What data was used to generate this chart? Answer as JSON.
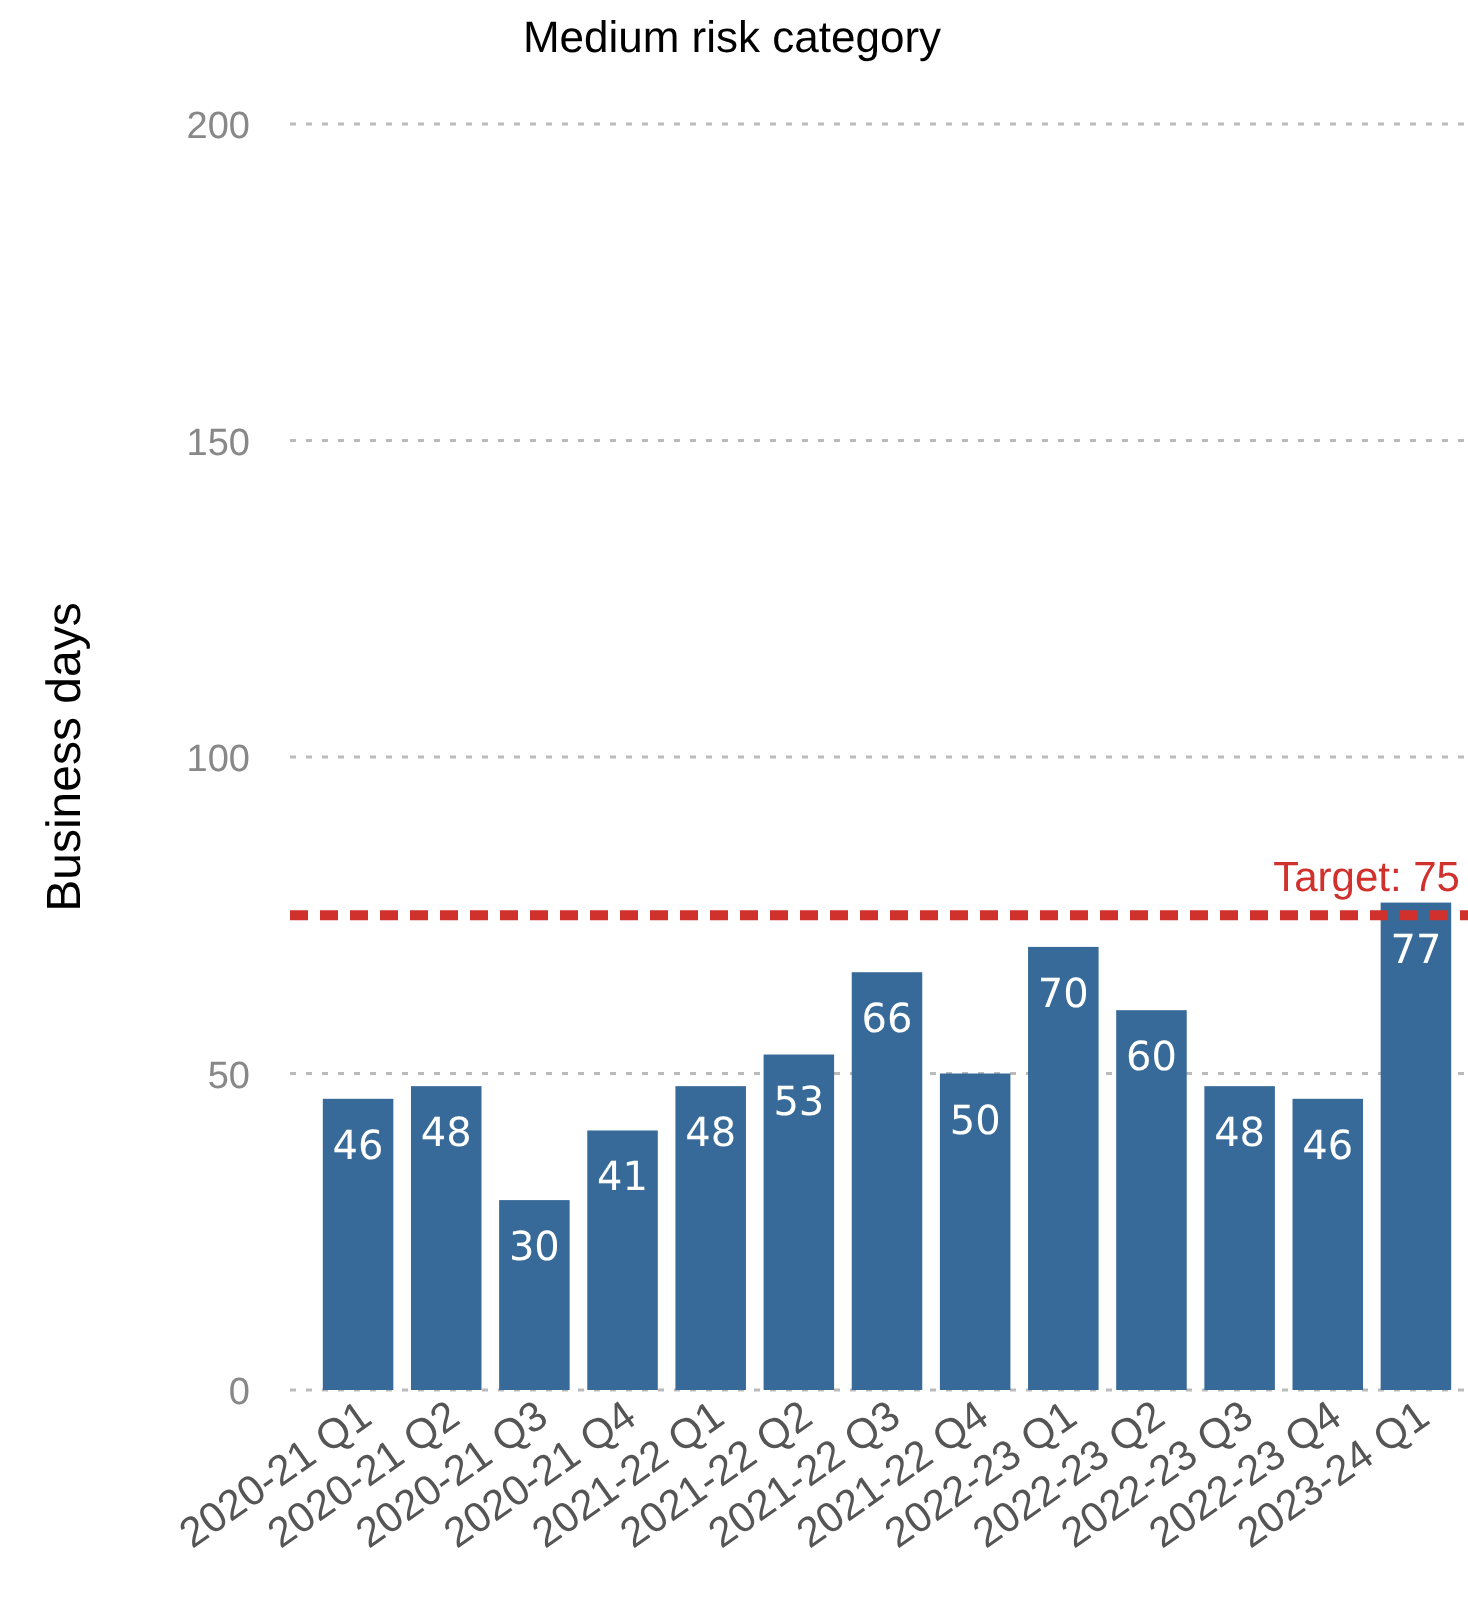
{
  "chart_data": {
    "type": "bar",
    "title": "Medium risk category",
    "ylabel": "Business days",
    "categories": [
      "2020-21 Q1",
      "2020-21 Q2",
      "2020-21 Q3",
      "2020-21 Q4",
      "2021-22 Q1",
      "2021-22 Q2",
      "2021-22 Q3",
      "2021-22 Q4",
      "2022-23 Q1",
      "2022-23 Q2",
      "2022-23 Q3",
      "2022-23 Q4",
      "2023-24 Q1"
    ],
    "values": [
      46,
      48,
      30,
      41,
      48,
      53,
      66,
      50,
      70,
      60,
      48,
      46,
      77
    ],
    "color": "#376a99",
    "ylim": [
      0,
      200
    ],
    "yticks": [
      0,
      50,
      100,
      150,
      200
    ],
    "grid": "y",
    "data_labels": true,
    "ref_lines": [
      {
        "axis": "y",
        "value": 75,
        "label": "Target: 75",
        "color": "#d0312d",
        "line_style": "dashed"
      }
    ]
  }
}
